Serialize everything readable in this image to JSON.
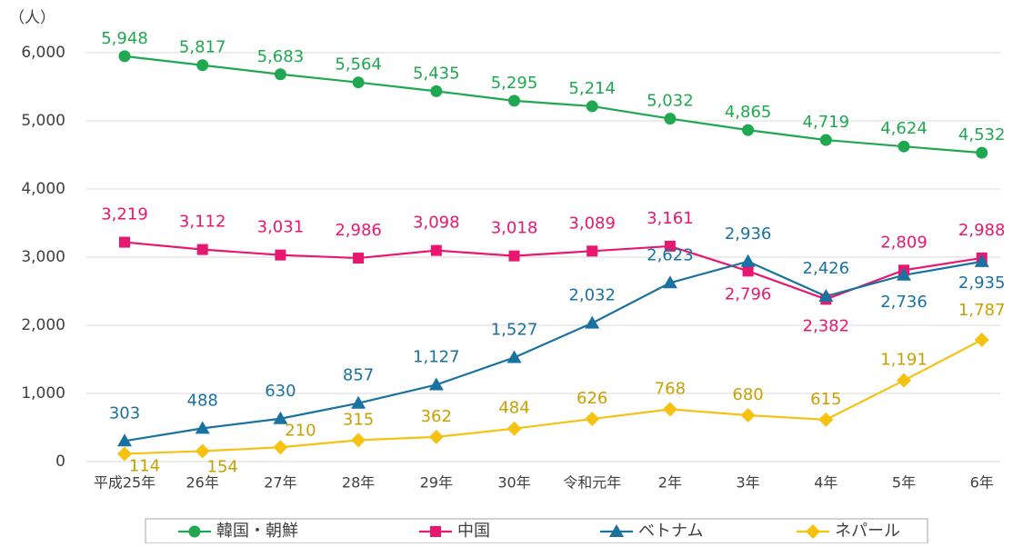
{
  "chart_data": {
    "type": "line",
    "y_label": "（人）",
    "categories": [
      "平成25年",
      "26年",
      "27年",
      "28年",
      "29年",
      "30年",
      "令和元年",
      "2年",
      "3年",
      "4年",
      "5年",
      "6年"
    ],
    "ylim": [
      0,
      6000
    ],
    "yticks": [
      0,
      {
        "value": 1000,
        "label": "1,000"
      },
      {
        "value": 2000,
        "label": "2,000"
      },
      {
        "value": 3000,
        "label": "3,000"
      },
      {
        "value": 4000,
        "label": "4,000"
      },
      {
        "value": 5000,
        "label": "5,000"
      },
      {
        "value": 6000,
        "label": "6,000"
      }
    ],
    "grid": true,
    "legend": "bottom",
    "series": [
      {
        "name": "韓国・朝鮮",
        "color": "#1fa84f",
        "marker": "circle",
        "values": [
          5948,
          5817,
          5683,
          5564,
          5435,
          5295,
          5214,
          5032,
          4865,
          4719,
          4624,
          4532
        ],
        "value_labels": [
          "5,948",
          "5,817",
          "5,683",
          "5,564",
          "5,435",
          "5,295",
          "5,214",
          "5,032",
          "4,865",
          "4,719",
          "4,624",
          "4,532"
        ]
      },
      {
        "name": "中国",
        "color": "#e8176f",
        "marker": "square",
        "values": [
          3219,
          3112,
          3031,
          2986,
          3098,
          3018,
          3089,
          3161,
          2796,
          2382,
          2809,
          2988
        ],
        "value_labels": [
          "3,219",
          "3,112",
          "3,031",
          "2,986",
          "3,098",
          "3,018",
          "3,089",
          "3,161",
          "2,796",
          "2,382",
          "2,809",
          "2,988"
        ]
      },
      {
        "name": "ベトナム",
        "color": "#1a72a0",
        "marker": "triangle",
        "values": [
          303,
          488,
          630,
          857,
          1127,
          1527,
          2032,
          2623,
          2936,
          2426,
          2736,
          2935
        ],
        "value_labels": [
          "303",
          "488",
          "630",
          "857",
          "1,127",
          "1,527",
          "2,032",
          "2,623",
          "2,936",
          "2,426",
          "2,736",
          "2,935"
        ]
      },
      {
        "name": "ネパール",
        "color": "#f5c211",
        "marker": "diamond",
        "values": [
          114,
          154,
          210,
          315,
          362,
          484,
          626,
          768,
          680,
          615,
          1191,
          1787
        ],
        "value_labels": [
          "114",
          "154",
          "210",
          "315",
          "362",
          "484",
          "626",
          "768",
          "680",
          "615",
          "1,191",
          "1,787"
        ]
      }
    ]
  }
}
